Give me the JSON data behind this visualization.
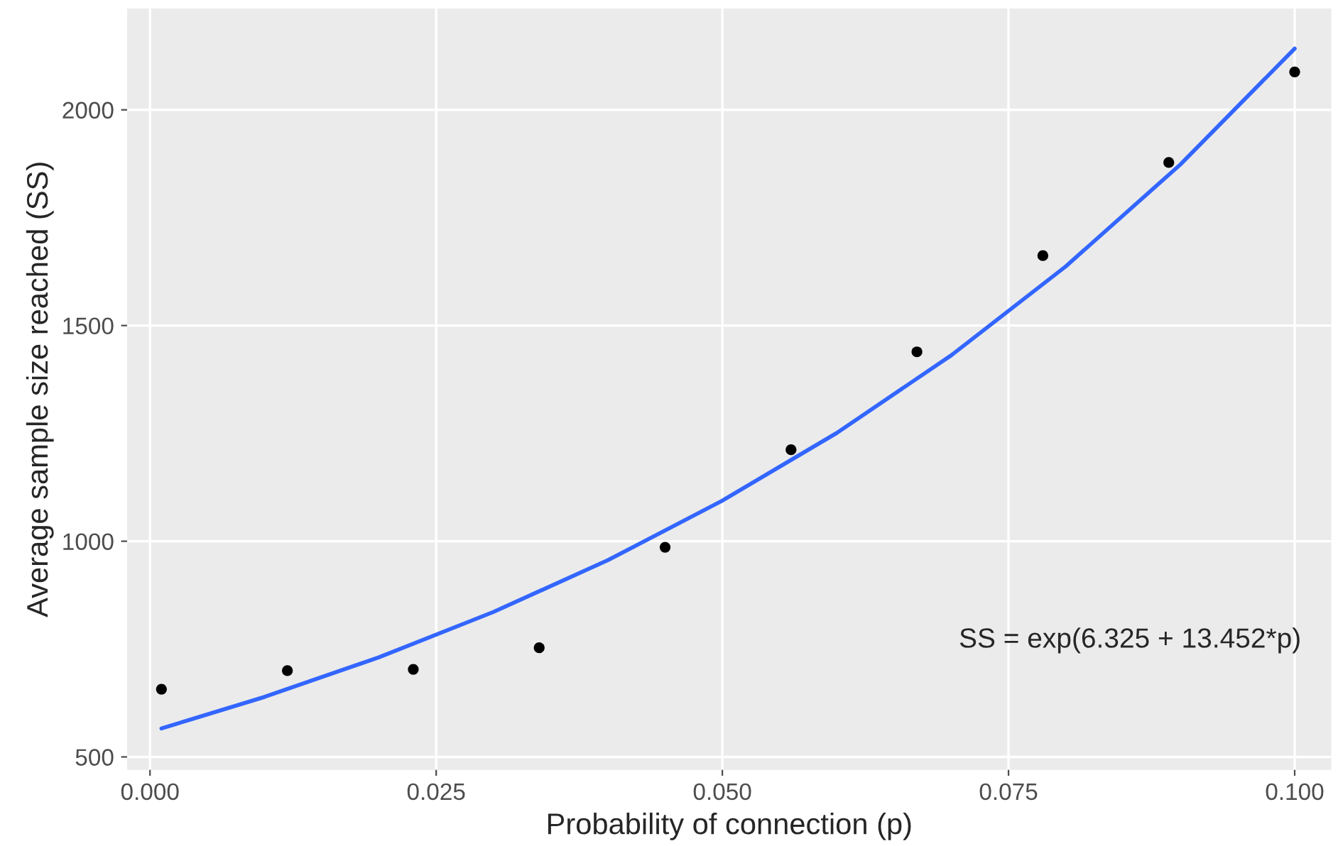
{
  "chart_data": {
    "type": "scatter",
    "xlabel": "Probability of connection (p)",
    "ylabel": "Average sample size reached (SS)",
    "series": [
      {
        "color": "#000000",
        "x": [
          0.001,
          0.012,
          0.023,
          0.034,
          0.045,
          0.056,
          0.067,
          0.078,
          0.089,
          0.1
        ],
        "values": [
          657,
          700,
          703,
          753,
          986,
          1212,
          1439,
          1662,
          1878,
          2088
        ]
      },
      {
        "type": "line",
        "color": "#3366ff",
        "x": [
          0.001,
          0.01,
          0.02,
          0.03,
          0.04,
          0.05,
          0.06,
          0.07,
          0.08,
          0.09,
          0.1
        ],
        "values": [
          566,
          639,
          731,
          836,
          956,
          1094,
          1251,
          1431,
          1637,
          1873,
          2142
        ]
      }
    ],
    "xlim": [
      -0.002,
      0.1032
    ],
    "xticks": [
      {
        "value": 0,
        "label": "0.000"
      },
      {
        "value": 0.025,
        "label": "0.025"
      },
      {
        "value": 0.05,
        "label": "0.050"
      },
      {
        "value": 0.075,
        "label": "0.075"
      },
      {
        "value": 0.1,
        "label": "0.100"
      }
    ],
    "ylim": [
      470,
      2235
    ],
    "yticks": [
      500,
      1000,
      1500,
      2000
    ],
    "grid": true,
    "annotations": [
      "SS = exp(6.325 + 13.452*p)"
    ]
  }
}
